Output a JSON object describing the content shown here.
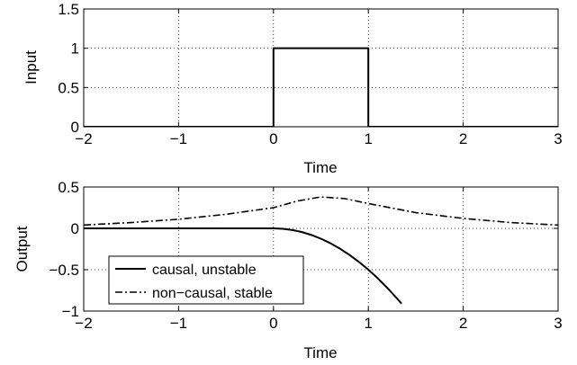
{
  "colors": {
    "line": "#000000",
    "grid": "#000000",
    "axes_background": "#ffffff"
  },
  "chart_data": [
    {
      "type": "line",
      "ylabel": "Input",
      "xlabel": "Time",
      "xlim": [
        -2,
        3
      ],
      "ylim": [
        0,
        1.5
      ],
      "grid": true,
      "xticks": [
        -2,
        -1,
        0,
        1,
        2,
        3
      ],
      "xtick_labels": [
        "−2",
        "−1",
        "0",
        "1",
        "2",
        "3"
      ],
      "yticks": [
        0,
        0.5,
        1,
        1.5
      ],
      "ytick_labels": [
        "0",
        "0.5",
        "1",
        "1.5"
      ],
      "series": [
        {
          "style": "solid",
          "x": [
            -2,
            0,
            0,
            1,
            1,
            3
          ],
          "y": [
            0,
            0,
            1,
            1,
            0,
            0
          ]
        }
      ]
    },
    {
      "type": "line",
      "ylabel": "Output",
      "xlabel": "Time",
      "xlim": [
        -2,
        3
      ],
      "ylim": [
        -1,
        0.5
      ],
      "grid": true,
      "xticks": [
        -2,
        -1,
        0,
        1,
        2,
        3
      ],
      "xtick_labels": [
        "−2",
        "−1",
        "0",
        "1",
        "2",
        "3"
      ],
      "yticks": [
        -1,
        -0.5,
        0,
        0.5
      ],
      "ytick_labels": [
        "−1",
        "−0.5",
        "0",
        "0.5"
      ],
      "legend_position": "bottom-left",
      "series": [
        {
          "name": "causal, unstable",
          "style": "solid",
          "x": [
            -2,
            0,
            0.1,
            0.2,
            0.3,
            0.4,
            0.5,
            0.6,
            0.7,
            0.8,
            0.9,
            1.0,
            1.1,
            1.2,
            1.3,
            1.35
          ],
          "y": [
            0,
            0,
            -0.005,
            -0.02,
            -0.045,
            -0.08,
            -0.125,
            -0.18,
            -0.245,
            -0.32,
            -0.405,
            -0.5,
            -0.605,
            -0.72,
            -0.845,
            -0.91
          ]
        },
        {
          "name": "non−causal, stable",
          "style": "dashdot",
          "x": [
            -2,
            -1.5,
            -1,
            -0.5,
            0,
            0.25,
            0.5,
            0.75,
            1,
            1.5,
            2,
            2.5,
            3
          ],
          "y": [
            0.04,
            0.07,
            0.11,
            0.17,
            0.25,
            0.33,
            0.38,
            0.36,
            0.3,
            0.19,
            0.12,
            0.07,
            0.04
          ]
        }
      ]
    }
  ]
}
